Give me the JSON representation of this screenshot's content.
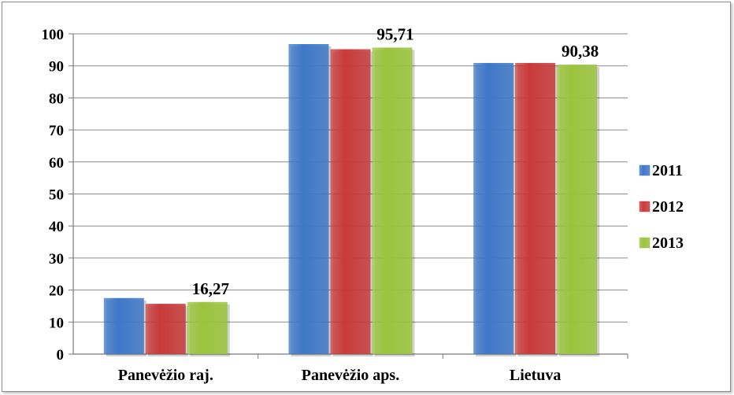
{
  "chart_data": {
    "type": "bar",
    "categories": [
      "Panevėžio raj.",
      "Panevėžio aps.",
      "Lietuva"
    ],
    "series": [
      {
        "name": "2011",
        "color": "#3f78c8",
        "values": [
          17.5,
          96.8,
          90.9
        ]
      },
      {
        "name": "2012",
        "color": "#c83a3a",
        "values": [
          15.7,
          95.2,
          90.9
        ]
      },
      {
        "name": "2013",
        "color": "#9bc43d",
        "values": [
          16.27,
          95.71,
          90.38
        ]
      }
    ],
    "data_labels": [
      {
        "series": 2,
        "category": 0,
        "text": "16,27"
      },
      {
        "series": 2,
        "category": 1,
        "text": "95,71"
      },
      {
        "series": 2,
        "category": 2,
        "text": "90,38"
      }
    ],
    "yticks": [
      "0",
      "10",
      "20",
      "30",
      "40",
      "50",
      "60",
      "70",
      "80",
      "90",
      "100"
    ],
    "ylim": [
      0,
      100
    ],
    "grid": true,
    "legend": "right"
  }
}
